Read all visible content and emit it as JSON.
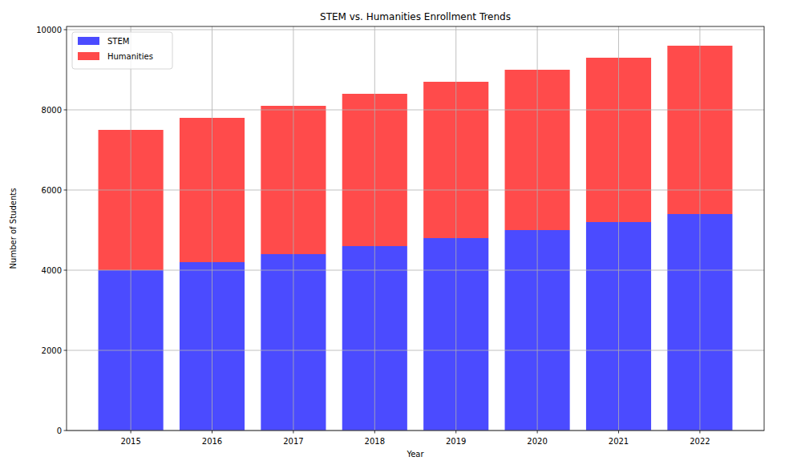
{
  "chart_data": {
    "type": "bar",
    "title": "STEM vs. Humanities Enrollment Trends",
    "x_label": "Year",
    "y_label": "Number of Students",
    "categories": [
      "2015",
      "2016",
      "2017",
      "2018",
      "2019",
      "2020",
      "2021",
      "2022"
    ],
    "series": [
      {
        "name": "STEM",
        "color": "#4b4bff",
        "values": [
          4000,
          4200,
          4400,
          4600,
          4800,
          5000,
          5200,
          5400
        ]
      },
      {
        "name": "Humanities",
        "color": "#ff4b4b",
        "values": [
          3500,
          3600,
          3700,
          3800,
          3900,
          4000,
          4100,
          4200
        ]
      }
    ],
    "stacked": true,
    "ylim": [
      0,
      10080
    ],
    "yticks": [
      0,
      2000,
      4000,
      6000,
      8000,
      10000
    ],
    "grid": true,
    "legend": "upper left"
  }
}
